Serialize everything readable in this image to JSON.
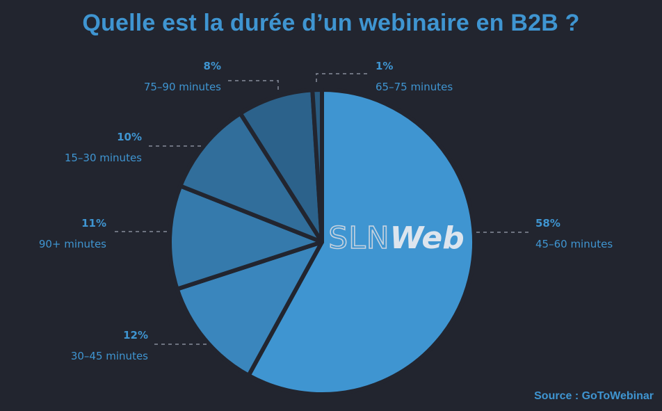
{
  "title": "Quelle est la durée d’un webinaire en B2B ?",
  "source": "Source : GoToWebinar",
  "watermark": {
    "part1": "SLN",
    "part2": "Web"
  },
  "chart_data": {
    "type": "pie",
    "title": "Quelle est la durée d’un webinaire en B2B ?",
    "slices": [
      {
        "label": "45–60 minutes",
        "value": 58,
        "percent_label": "58%",
        "color": "#3f95d1"
      },
      {
        "label": "30–45 minutes",
        "value": 12,
        "percent_label": "12%",
        "color": "#3a86bd"
      },
      {
        "label": "90+ minutes",
        "value": 11,
        "percent_label": "11%",
        "color": "#357aac"
      },
      {
        "label": "15–30 minutes",
        "value": 10,
        "percent_label": "10%",
        "color": "#316e9b"
      },
      {
        "label": "75–90 minutes",
        "value": 8,
        "percent_label": "8%",
        "color": "#2c628b"
      },
      {
        "label": "65–75 minutes",
        "value": 1,
        "percent_label": "1%",
        "color": "#2a5b80"
      }
    ],
    "start": "top",
    "direction": "clockwise",
    "legend": "none"
  }
}
